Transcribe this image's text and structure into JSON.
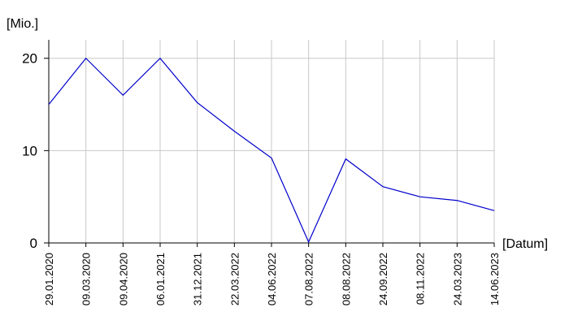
{
  "chart_data": {
    "type": "line",
    "y_label": "[Mio.]",
    "x_label": "[Datum]",
    "categories": [
      "29.01.2020",
      "09.03.2020",
      "09.04.2020",
      "06.01.2021",
      "31.12.2021",
      "22.03.2022",
      "04.06.2022",
      "07.08.2022",
      "08.08.2022",
      "24.09.2022",
      "08.11.2022",
      "24.03.2023",
      "14.06.2023"
    ],
    "values": [
      15.0,
      20.0,
      16.0,
      20.0,
      15.2,
      12.1,
      9.2,
      0.1,
      9.1,
      6.1,
      5.0,
      4.6,
      3.5
    ],
    "color": "#0000cc",
    "ylim": [
      0,
      22
    ],
    "yticks": [
      0,
      10,
      20
    ],
    "grid": true
  }
}
